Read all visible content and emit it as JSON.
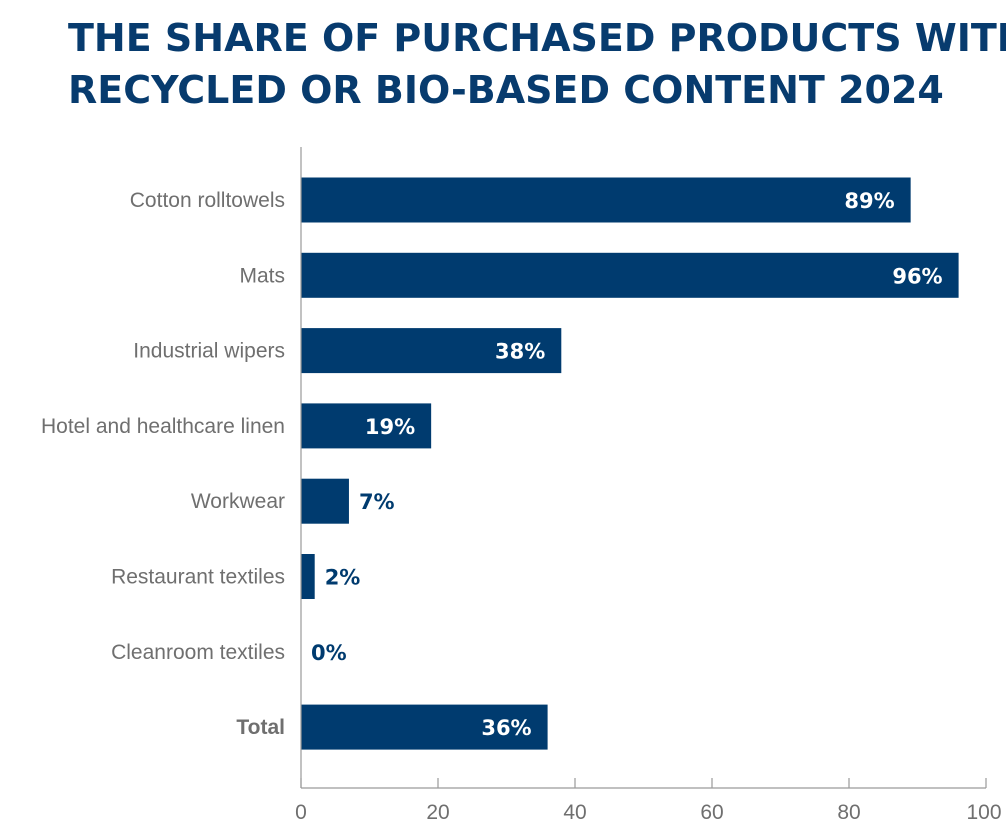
{
  "chart_data": {
    "type": "bar",
    "orientation": "horizontal",
    "title_lines": [
      "THE SHARE OF PURCHASED PRODUCTS WITH",
      "RECYCLED OR BIO-BASED CONTENT 2024"
    ],
    "categories": [
      "Cotton rolltowels",
      "Mats",
      "Industrial wipers",
      "Hotel and healthcare linen",
      "Workwear",
      "Restaurant textiles",
      "Cleanroom textiles",
      "Total"
    ],
    "values": [
      89,
      96,
      38,
      19,
      7,
      2,
      0,
      36
    ],
    "value_labels": [
      "89%",
      "96%",
      "38%",
      "19%",
      "7%",
      "2%",
      "0%",
      "36%"
    ],
    "bold_categories": [
      "Total"
    ],
    "xlim": [
      0,
      100
    ],
    "xticks": [
      0,
      20,
      40,
      60,
      80,
      100
    ],
    "xtick_labels": [
      "0",
      "20",
      "40",
      "60",
      "80",
      "100"
    ],
    "xlabel": "",
    "ylabel": "",
    "grid": false,
    "legend": "none",
    "colors": {
      "bar": "#003b6f",
      "title": "#073b6e",
      "label_inside": "#ffffff",
      "label_outside": "#003b6f",
      "axis": "#9a9a9a",
      "text": "#6f6f6f"
    }
  }
}
